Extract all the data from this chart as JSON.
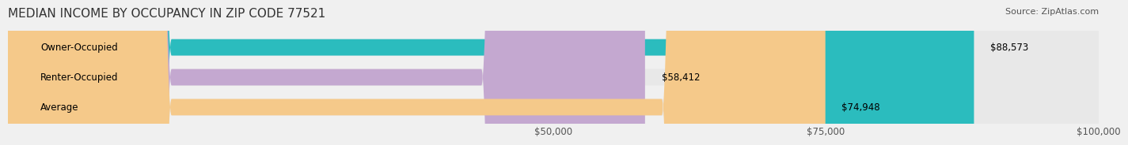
{
  "title": "MEDIAN INCOME BY OCCUPANCY IN ZIP CODE 77521",
  "source": "Source: ZipAtlas.com",
  "categories": [
    "Owner-Occupied",
    "Renter-Occupied",
    "Average"
  ],
  "values": [
    88573,
    58412,
    74948
  ],
  "bar_colors": [
    "#2bbcbe",
    "#c4a8d0",
    "#f5c98a"
  ],
  "bar_edge_colors": [
    "#2bbcbe",
    "#c4a8d0",
    "#f5c98a"
  ],
  "label_texts": [
    "$88,573",
    "$58,412",
    "$74,948"
  ],
  "xmin": 0,
  "xmax": 100000,
  "xticks": [
    50000,
    75000,
    100000
  ],
  "xtick_labels": [
    "$50,000",
    "$75,000",
    "$100,000"
  ],
  "background_color": "#f0f0f0",
  "bar_background_color": "#e8e8e8",
  "title_fontsize": 11,
  "source_fontsize": 8,
  "tick_fontsize": 8.5,
  "label_fontsize": 8.5,
  "category_fontsize": 8.5
}
